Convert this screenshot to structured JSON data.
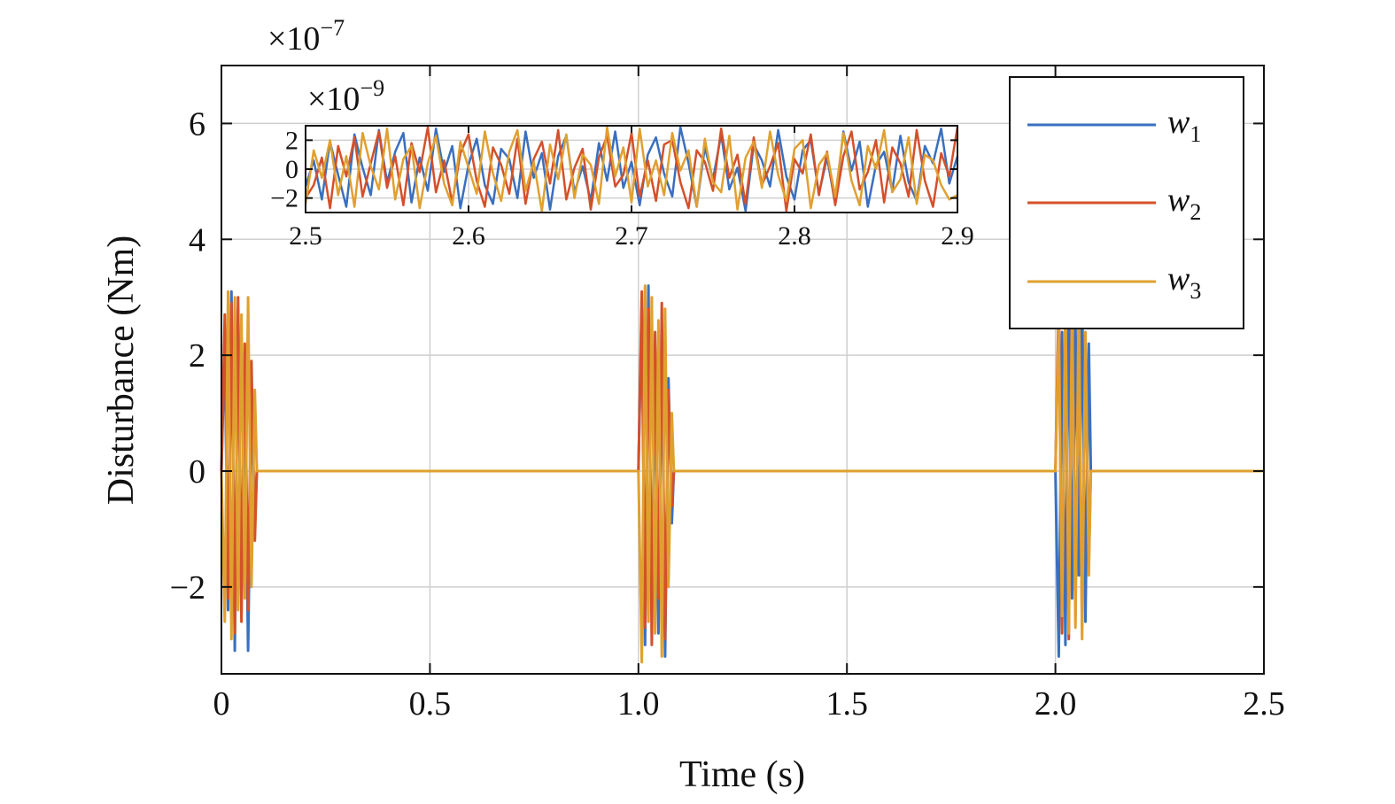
{
  "chart_data": [
    {
      "type": "line",
      "title": "",
      "xlabel": "Time (s)",
      "ylabel": "Disturbance (Nm)",
      "y_multiplier": "×10",
      "y_multiplier_exponent": "−7",
      "xlim": [
        0,
        2.5
      ],
      "ylim": [
        -3.5,
        7
      ],
      "xticks": [
        0,
        0.5,
        1.0,
        1.5,
        2.0,
        2.5
      ],
      "xtick_labels": [
        "0",
        "0.5",
        "1.0",
        "1.5",
        "2.0",
        "2.5"
      ],
      "yticks": [
        -2,
        0,
        2,
        4,
        6
      ],
      "ytick_labels": [
        "−2",
        "0",
        "2",
        "4",
        "6"
      ],
      "grid": true,
      "legend_position": "top-right",
      "bursts": [
        {
          "start": 0.0,
          "end": 0.085
        },
        {
          "start": 1.0,
          "end": 1.085
        },
        {
          "start": 2.0,
          "end": 2.085
        }
      ],
      "series": [
        {
          "name": "w",
          "subscript": "1",
          "color": "#3A6FBF",
          "x": [
            0.0,
            0.008,
            0.016,
            0.024,
            0.032,
            0.04,
            0.048,
            0.056,
            0.064,
            0.072,
            0.08,
            0.085,
            1.0,
            1.008,
            1.016,
            1.024,
            1.032,
            1.04,
            1.048,
            1.056,
            1.064,
            1.072,
            1.08,
            1.085,
            2.0,
            2.008,
            2.016,
            2.024,
            2.032,
            2.04,
            2.048,
            2.056,
            2.064,
            2.072,
            2.08,
            2.085
          ],
          "y": [
            0.0,
            2.3,
            -2.4,
            3.1,
            -3.1,
            2.8,
            -2.0,
            1.5,
            -3.1,
            1.2,
            -0.8,
            0.0,
            0.0,
            2.9,
            -3.0,
            3.2,
            -2.5,
            1.8,
            -2.8,
            2.4,
            -3.2,
            1.6,
            -0.9,
            0.0,
            0.0,
            -3.2,
            2.4,
            -3.0,
            3.1,
            -2.2,
            2.6,
            -1.8,
            3.2,
            -2.6,
            2.2,
            0.0
          ]
        },
        {
          "name": "w",
          "subscript": "2",
          "color": "#D4502A",
          "x": [
            0.0,
            0.008,
            0.016,
            0.024,
            0.032,
            0.04,
            0.048,
            0.056,
            0.064,
            0.072,
            0.08,
            0.085,
            1.0,
            1.008,
            1.016,
            1.024,
            1.032,
            1.04,
            1.048,
            1.056,
            1.064,
            1.072,
            1.08,
            1.085,
            2.0,
            2.008,
            2.016,
            2.024,
            2.032,
            2.04,
            2.048,
            2.056,
            2.064,
            2.072,
            2.08,
            2.085
          ],
          "y": [
            0.0,
            2.7,
            -2.2,
            2.9,
            -2.8,
            3.0,
            -2.6,
            2.2,
            -2.4,
            1.9,
            -1.2,
            0.0,
            0.0,
            3.1,
            -2.7,
            2.8,
            -3.0,
            2.4,
            -2.2,
            2.9,
            -2.9,
            1.4,
            -0.6,
            0.0,
            0.0,
            3.0,
            -2.8,
            2.7,
            -2.9,
            3.1,
            -2.5,
            2.8,
            -2.7,
            2.2,
            -1.6,
            0.0
          ]
        },
        {
          "name": "w",
          "subscript": "3",
          "color": "#E0A030",
          "x": [
            0.0,
            0.008,
            0.016,
            0.024,
            0.032,
            0.04,
            0.048,
            0.056,
            0.064,
            0.072,
            0.08,
            0.085,
            1.0,
            1.008,
            1.016,
            1.024,
            1.032,
            1.04,
            1.048,
            1.056,
            1.064,
            1.072,
            1.08,
            1.085,
            2.0,
            2.008,
            2.016,
            2.024,
            2.032,
            2.04,
            2.048,
            2.056,
            2.064,
            2.072,
            2.08,
            2.085
          ],
          "y": [
            0.0,
            -2.6,
            3.1,
            -2.9,
            3.0,
            -2.4,
            2.7,
            -2.2,
            3.0,
            -2.0,
            1.4,
            0.0,
            0.0,
            -3.3,
            3.2,
            -2.6,
            3.0,
            -2.8,
            2.6,
            -3.2,
            2.8,
            -2.0,
            1.0,
            0.0,
            0.0,
            2.6,
            -2.5,
            3.0,
            -2.8,
            2.9,
            -2.7,
            3.1,
            -2.9,
            2.4,
            -1.8,
            0.0
          ]
        }
      ]
    },
    {
      "type": "line",
      "title": "",
      "xlabel": "",
      "ylabel": "",
      "y_multiplier": "×10",
      "y_multiplier_exponent": "−9",
      "xlim": [
        2.5,
        2.9
      ],
      "ylim": [
        -3,
        3
      ],
      "xticks": [
        2.5,
        2.6,
        2.7,
        2.8,
        2.9
      ],
      "xtick_labels": [
        "2.5",
        "2.6",
        "2.7",
        "2.8",
        "2.9"
      ],
      "yticks": [
        -2,
        0,
        2
      ],
      "ytick_labels": [
        "−2",
        "0",
        "2"
      ],
      "grid": true,
      "series": [
        {
          "name": "w",
          "subscript": "1",
          "color": "#3A6FBF",
          "x": [
            2.5,
            2.505,
            2.51,
            2.515,
            2.52,
            2.525,
            2.53,
            2.535,
            2.54,
            2.545,
            2.55,
            2.555,
            2.56,
            2.565,
            2.57,
            2.575,
            2.58,
            2.585,
            2.59,
            2.595,
            2.6,
            2.605,
            2.61,
            2.615,
            2.62,
            2.625,
            2.63,
            2.635,
            2.64,
            2.645,
            2.65,
            2.655,
            2.66,
            2.665,
            2.67,
            2.675,
            2.68,
            2.685,
            2.69,
            2.695,
            2.7,
            2.705,
            2.71,
            2.715,
            2.72,
            2.725,
            2.73,
            2.735,
            2.74,
            2.745,
            2.75,
            2.755,
            2.76,
            2.765,
            2.77,
            2.775,
            2.78,
            2.785,
            2.79,
            2.795,
            2.8,
            2.805,
            2.81,
            2.815,
            2.82,
            2.825,
            2.83,
            2.835,
            2.84,
            2.845,
            2.85,
            2.855,
            2.86,
            2.865,
            2.87,
            2.875,
            2.88,
            2.885,
            2.89,
            2.895,
            2.9
          ],
          "y": [
            -1.2,
            0.6,
            -2.1,
            1.9,
            -0.4,
            -2.6,
            2.4,
            0.1,
            -1.8,
            2.7,
            -0.9,
            1.2,
            2.5,
            -2.3,
            0.8,
            -1.5,
            2.8,
            -0.2,
            1.6,
            -2.7,
            0.3,
            2.1,
            -1.1,
            -2.4,
            1.4,
            0.7,
            -2.0,
            2.6,
            -0.6,
            1.1,
            -2.8,
            0.9,
            2.3,
            -1.6,
            0.2,
            -2.2,
            1.8,
            -0.8,
            2.6,
            -1.3,
            0.5,
            -2.5,
            1.0,
            2.2,
            -0.3,
            -1.9,
            2.9,
            0.4,
            -2.6,
            1.5,
            -0.7,
            2.4,
            -1.4,
            0.1,
            -2.9,
            1.7,
            0.6,
            -1.2,
            2.7,
            -0.5,
            -2.1,
            1.3,
            2.0,
            -1.7,
            0.8,
            -2.4,
            2.6,
            -0.1,
            1.9,
            -2.6,
            0.3,
            1.2,
            -1.5,
            2.3,
            -0.9,
            -2.2,
            1.6,
            0.4,
            2.8,
            -1.0,
            0.9
          ]
        },
        {
          "name": "w",
          "subscript": "2",
          "color": "#D4502A",
          "x": [
            2.5,
            2.505,
            2.51,
            2.515,
            2.52,
            2.525,
            2.53,
            2.535,
            2.54,
            2.545,
            2.55,
            2.555,
            2.56,
            2.565,
            2.57,
            2.575,
            2.58,
            2.585,
            2.59,
            2.595,
            2.6,
            2.605,
            2.61,
            2.615,
            2.62,
            2.625,
            2.63,
            2.635,
            2.64,
            2.645,
            2.65,
            2.655,
            2.66,
            2.665,
            2.67,
            2.675,
            2.68,
            2.685,
            2.69,
            2.695,
            2.7,
            2.705,
            2.71,
            2.715,
            2.72,
            2.725,
            2.73,
            2.735,
            2.74,
            2.745,
            2.75,
            2.755,
            2.76,
            2.765,
            2.77,
            2.775,
            2.78,
            2.785,
            2.79,
            2.795,
            2.8,
            2.805,
            2.81,
            2.815,
            2.82,
            2.825,
            2.83,
            2.835,
            2.84,
            2.845,
            2.85,
            2.855,
            2.86,
            2.865,
            2.87,
            2.875,
            2.88,
            2.885,
            2.89,
            2.895,
            2.9
          ],
          "y": [
            -2.0,
            -1.1,
            0.8,
            -2.7,
            1.6,
            -0.5,
            2.2,
            -1.9,
            0.4,
            2.6,
            -1.3,
            0.9,
            -2.5,
            1.8,
            -0.2,
            2.9,
            -1.6,
            0.6,
            -2.3,
            1.1,
            2.4,
            -0.8,
            -2.6,
            1.5,
            0.3,
            -1.7,
            2.1,
            -2.4,
            0.7,
            1.9,
            -1.0,
            2.7,
            -2.1,
            0.1,
            1.4,
            -2.8,
            0.8,
            2.3,
            -1.2,
            -0.4,
            2.5,
            -1.9,
            0.6,
            -2.2,
            1.7,
            2.0,
            -0.9,
            -2.7,
            1.3,
            0.5,
            -1.5,
            2.8,
            -0.6,
            1.0,
            -2.4,
            2.2,
            -1.1,
            0.2,
            1.8,
            -2.9,
            0.7,
            -0.3,
            2.4,
            -1.8,
            1.2,
            -2.5,
            0.9,
            2.6,
            -1.4,
            -0.2,
            2.0,
            -2.3,
            1.5,
            0.4,
            -1.9,
            2.7,
            -0.8,
            -2.6,
            1.1,
            -0.5,
            2.9
          ]
        },
        {
          "name": "w",
          "subscript": "3",
          "color": "#E0A030",
          "x": [
            2.5,
            2.505,
            2.51,
            2.515,
            2.52,
            2.525,
            2.53,
            2.535,
            2.54,
            2.545,
            2.55,
            2.555,
            2.56,
            2.565,
            2.57,
            2.575,
            2.58,
            2.585,
            2.59,
            2.595,
            2.6,
            2.605,
            2.61,
            2.615,
            2.62,
            2.625,
            2.63,
            2.635,
            2.64,
            2.645,
            2.65,
            2.655,
            2.66,
            2.665,
            2.67,
            2.675,
            2.68,
            2.685,
            2.69,
            2.695,
            2.7,
            2.705,
            2.71,
            2.715,
            2.72,
            2.725,
            2.73,
            2.735,
            2.74,
            2.745,
            2.75,
            2.755,
            2.76,
            2.765,
            2.77,
            2.775,
            2.78,
            2.785,
            2.79,
            2.795,
            2.8,
            2.805,
            2.81,
            2.815,
            2.82,
            2.825,
            2.83,
            2.835,
            2.84,
            2.845,
            2.85,
            2.855,
            2.86,
            2.865,
            2.87,
            2.875,
            2.88,
            2.885,
            2.89,
            2.895,
            2.9
          ],
          "y": [
            -2.4,
            1.3,
            -0.6,
            2.0,
            -1.8,
            0.9,
            -2.6,
            2.5,
            0.2,
            -1.4,
            2.8,
            -2.1,
            0.7,
            1.6,
            -2.7,
            0.4,
            2.3,
            -1.0,
            -2.5,
            1.9,
            0.1,
            -1.7,
            2.6,
            -0.3,
            -2.2,
            1.2,
            2.7,
            -1.5,
            0.5,
            -2.9,
            1.7,
            -0.7,
            2.4,
            -2.0,
            1.0,
            0.3,
            -2.4,
            2.9,
            -0.5,
            1.5,
            -2.3,
            2.8,
            -1.2,
            0.6,
            -1.8,
            2.5,
            -0.1,
            1.3,
            -2.6,
            2.1,
            -0.9,
            -1.6,
            2.3,
            -2.8,
            0.8,
            1.9,
            -1.3,
            2.6,
            -0.4,
            -2.2,
            1.4,
            2.0,
            -2.7,
            0.3,
            1.1,
            -1.9,
            2.5,
            -0.8,
            -2.5,
            1.6,
            0.0,
            2.7,
            -1.6,
            -0.7,
            2.2,
            -2.4,
            1.0,
            0.6,
            -1.1,
            -2.1,
            -1.8
          ]
        }
      ]
    }
  ]
}
